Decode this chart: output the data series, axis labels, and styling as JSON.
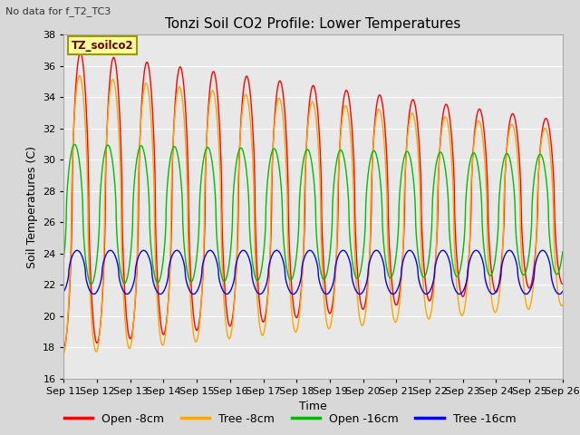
{
  "title": "Tonzi Soil CO2 Profile: Lower Temperatures",
  "subtitle": "No data for f_T2_TC3",
  "xlabel": "Time",
  "ylabel": "Soil Temperatures (C)",
  "ylim": [
    16,
    38
  ],
  "yticks": [
    16,
    18,
    20,
    22,
    24,
    26,
    28,
    30,
    32,
    34,
    36,
    38
  ],
  "xtick_labels": [
    "Sep 11",
    "Sep 12",
    "Sep 13",
    "Sep 14",
    "Sep 15",
    "Sep 16",
    "Sep 17",
    "Sep 18",
    "Sep 19",
    "Sep 20",
    "Sep 21",
    "Sep 22",
    "Sep 23",
    "Sep 24",
    "Sep 25",
    "Sep 26"
  ],
  "legend_labels": [
    "Open -8cm",
    "Tree -8cm",
    "Open -16cm",
    "Tree -16cm"
  ],
  "legend_colors": [
    "#ff0000",
    "#ffa500",
    "#00bb00",
    "#0000ff"
  ],
  "legend_box_label": "TZ_soilco2",
  "legend_box_color": "#ffff99",
  "legend_box_edge": "#999900",
  "bg_color": "#e8e8e8",
  "grid_color": "#ffffff",
  "n_days": 15,
  "points_per_day": 144
}
